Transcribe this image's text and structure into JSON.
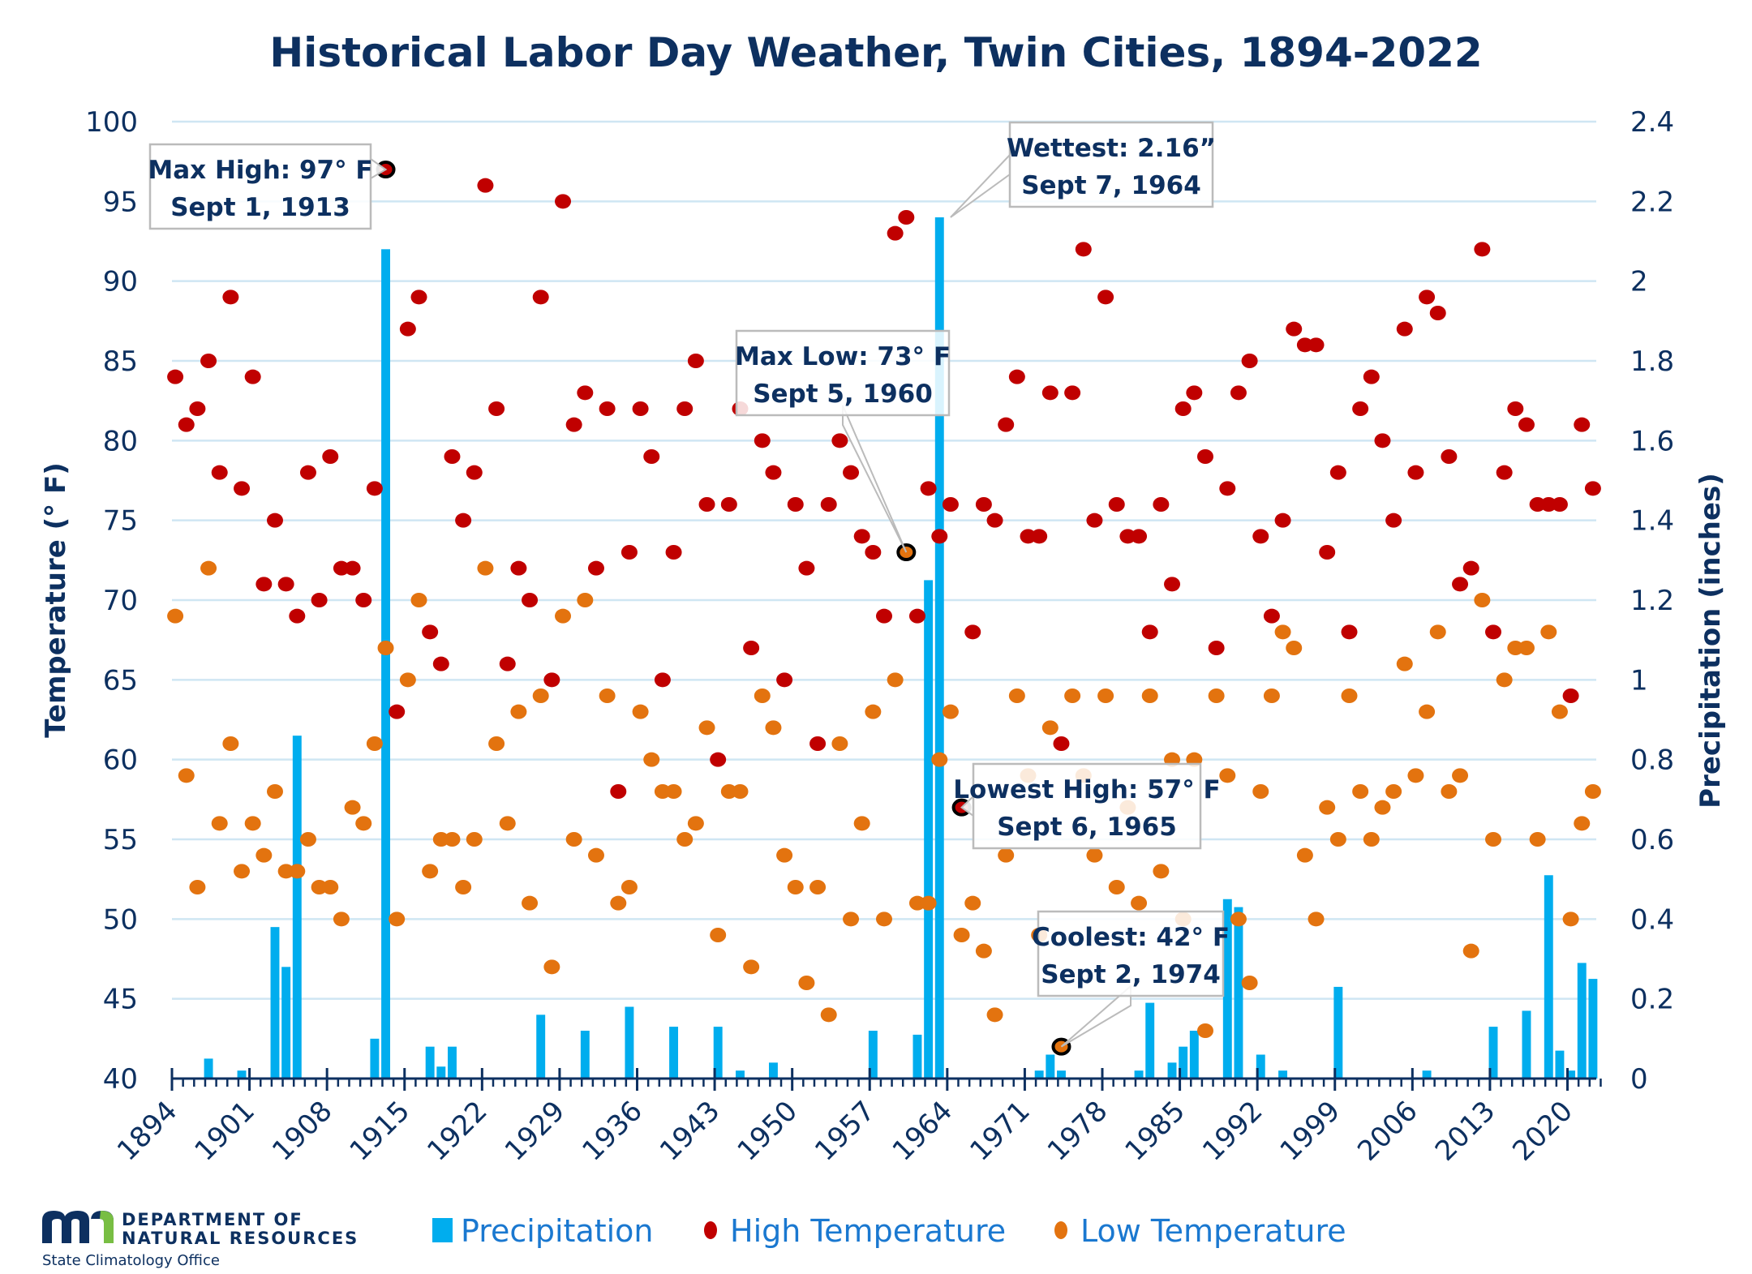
{
  "chart_data": {
    "type": "bar+scatter",
    "title": "Historical Labor Day Weather, Twin Cities, 1894-2022",
    "ylabel": "Temperature (° F)",
    "y2label": "Precipitation (inches)",
    "ylim": [
      40,
      100
    ],
    "y2lim": [
      0,
      2.4
    ],
    "yticks": [
      "100",
      "95",
      "90",
      "85",
      "80",
      "75",
      "70",
      "65",
      "60",
      "55",
      "50",
      "45",
      "40"
    ],
    "y2ticks": [
      "2.4",
      "2.2",
      "2",
      "1.8",
      "1.6",
      "1.4",
      "1.2",
      "1",
      "0.8",
      "0.6",
      "0.4",
      "0.2",
      "0"
    ],
    "xtick_labels": [
      "1894",
      "1901",
      "1908",
      "1915",
      "1922",
      "1929",
      "1936",
      "1943",
      "1950",
      "1957",
      "1964",
      "1971",
      "1978",
      "1985",
      "1992",
      "1999",
      "2006",
      "2013",
      "2020"
    ],
    "grid": true,
    "legend_position": "bottom",
    "legend": [
      {
        "label": "Precipitation",
        "color": "#00adee",
        "marker": "square"
      },
      {
        "label": "High Temperature",
        "color": "#c00000",
        "marker": "circle"
      },
      {
        "label": "Low Temperature",
        "color": "#e3730f",
        "marker": "circle"
      }
    ],
    "start_year": 1894,
    "end_year": 2022,
    "series": [
      {
        "name": "High Temperature",
        "axis": "left",
        "values": [
          84,
          81,
          82,
          85,
          78,
          89,
          77,
          84,
          71,
          75,
          71,
          69,
          78,
          70,
          79,
          72,
          72,
          70,
          77,
          97,
          63,
          87,
          89,
          68,
          66,
          79,
          75,
          78,
          96,
          82,
          66,
          72,
          70,
          89,
          65,
          95,
          81,
          83,
          72,
          82,
          58,
          73,
          82,
          79,
          65,
          73,
          82,
          85,
          76,
          60,
          76,
          82,
          67,
          80,
          78,
          65,
          76,
          72,
          61,
          76,
          80,
          78,
          74,
          73,
          69,
          93,
          94,
          69,
          77,
          74,
          76,
          57,
          68,
          76,
          75,
          81,
          84,
          74,
          74,
          83,
          61,
          83,
          92,
          75,
          89,
          76,
          74,
          74,
          68,
          76,
          71,
          82,
          83,
          79,
          67,
          77,
          83,
          85,
          74,
          69,
          75,
          87,
          86,
          86,
          73,
          78,
          68,
          82,
          84,
          80,
          75,
          87,
          78,
          89,
          88,
          79,
          71,
          72,
          92,
          68,
          78,
          82,
          81,
          76,
          76,
          76,
          64,
          81,
          77
        ]
      },
      {
        "name": "Low Temperature",
        "axis": "left",
        "values": [
          69,
          59,
          52,
          72,
          56,
          61,
          53,
          56,
          54,
          58,
          53,
          53,
          55,
          52,
          52,
          50,
          57,
          56,
          61,
          67,
          50,
          65,
          70,
          53,
          55,
          55,
          52,
          55,
          72,
          61,
          56,
          63,
          51,
          64,
          47,
          69,
          55,
          70,
          54,
          64,
          51,
          52,
          63,
          60,
          58,
          58,
          55,
          56,
          62,
          49,
          58,
          58,
          47,
          64,
          62,
          54,
          52,
          46,
          52,
          44,
          61,
          50,
          56,
          63,
          50,
          65,
          73,
          51,
          51,
          60,
          63,
          49,
          51,
          48,
          44,
          54,
          64,
          59,
          49,
          62,
          42,
          64,
          59,
          54,
          64,
          52,
          57,
          51,
          64,
          53,
          60,
          50,
          60,
          43,
          64,
          59,
          50,
          46,
          58,
          64,
          68,
          67,
          54,
          50,
          57,
          55,
          64,
          58,
          55,
          57,
          58,
          66,
          59,
          63,
          68,
          58,
          59,
          48,
          70,
          55,
          65,
          67,
          67,
          55,
          68,
          63,
          50,
          56,
          58
        ]
      },
      {
        "name": "Precipitation",
        "axis": "right",
        "values": [
          0,
          0,
          0,
          0.05,
          0,
          0,
          0.02,
          0,
          0,
          0.38,
          0.28,
          0.86,
          0,
          0,
          0,
          0,
          0,
          0,
          0.1,
          2.08,
          0,
          0,
          0,
          0.08,
          0.03,
          0.08,
          0,
          0,
          0,
          0,
          0,
          0,
          0,
          0.16,
          0,
          0,
          0,
          0.12,
          0,
          0,
          0,
          0.18,
          0,
          0,
          0,
          0.13,
          0,
          0,
          0,
          0.13,
          0,
          0.02,
          0,
          0,
          0.04,
          0,
          0,
          0,
          0,
          0,
          0,
          0,
          0,
          0.12,
          0,
          0,
          0,
          0.11,
          1.25,
          2.16,
          0,
          0,
          0,
          0,
          0,
          0,
          0,
          0,
          0.02,
          0.06,
          0.02,
          0,
          0,
          0,
          0,
          0,
          0,
          0.02,
          0.19,
          0,
          0.04,
          0.08,
          0.12,
          0,
          0,
          0.45,
          0.43,
          0,
          0.06,
          0,
          0.02,
          0,
          0,
          0,
          0,
          0.23,
          0,
          0,
          0,
          0,
          0,
          0,
          0,
          0.02,
          0,
          0,
          0,
          0,
          0,
          0.13,
          0,
          0,
          0.17,
          0,
          0.51,
          0.07,
          0.02,
          0.29,
          0.25,
          0,
          0
        ]
      }
    ],
    "annotations": [
      {
        "line1": "Max High: 97° F",
        "line2": "Sept 1, 1913",
        "year": 1913,
        "value": 97,
        "series": "High Temperature"
      },
      {
        "line1": "Wettest: 2.16”",
        "line2": "Sept 7, 1964",
        "year": 1964,
        "value": 2.16,
        "series": "Precipitation"
      },
      {
        "line1": "Max Low: 73° F",
        "line2": "Sept 5, 1960",
        "year": 1960,
        "value": 73,
        "series": "Low Temperature"
      },
      {
        "line1": "Lowest High: 57° F",
        "line2": "Sept 6, 1965",
        "year": 1965,
        "value": 57,
        "series": "High Temperature"
      },
      {
        "line1": "Coolest: 42°  F",
        "line2": "Sept 2, 1974",
        "year": 1974,
        "value": 42,
        "series": "Low Temperature"
      }
    ]
  },
  "colors": {
    "precip": "#00adee",
    "high": "#c00000",
    "low": "#e3730f",
    "text": "#0d3060",
    "grid": "#cfe6f3",
    "legend_text": "#1a78d0",
    "logo_green": "#78be43"
  },
  "footer": {
    "logo_mark": "mn",
    "logo_line1": "DEPARTMENT OF",
    "logo_line2": "NATURAL RESOURCES",
    "logo_sub": "State Climatology Office"
  }
}
